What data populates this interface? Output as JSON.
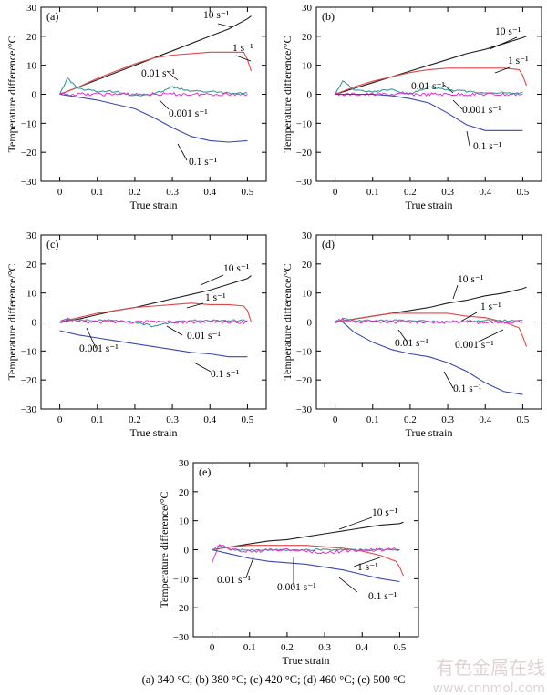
{
  "caption": "(a) 340 °C; (b) 380 °C; (c) 420 °C; (d) 460 °C; (e) 500 °C",
  "watermark": {
    "cn": "有色金属在线",
    "url": "www.cnnmol.com"
  },
  "colors": {
    "10": "#202020",
    "1": "#e04848",
    "0.01": "#3a9a9a",
    "0.001": "#e020d0",
    "0.1": "#3848b0",
    "axis": "#000000",
    "wm": "#d8c8c8"
  },
  "chart_data": [
    {
      "panel": "(a)",
      "type": "line",
      "xlabel": "True strain",
      "ylabel": "Temperature difference/°C",
      "xlim": [
        -0.05,
        0.55
      ],
      "ylim": [
        -30,
        30
      ],
      "xticks": [
        "0",
        "0.1",
        "0.2",
        "0.3",
        "0.4",
        "0.5"
      ],
      "yticks": [
        "30",
        "20",
        "10",
        "0",
        "−10",
        "−20",
        "−30"
      ],
      "series": [
        {
          "name": "10 s⁻¹",
          "key": "10",
          "x": [
            0,
            0.05,
            0.1,
            0.15,
            0.2,
            0.25,
            0.3,
            0.35,
            0.4,
            0.45,
            0.5,
            0.51
          ],
          "y": [
            0,
            2.5,
            5,
            7.5,
            10,
            12.5,
            15,
            17.5,
            20,
            22.5,
            26,
            27
          ]
        },
        {
          "name": "1 s⁻¹",
          "key": "1",
          "x": [
            0,
            0.05,
            0.1,
            0.15,
            0.2,
            0.25,
            0.3,
            0.35,
            0.4,
            0.45,
            0.49,
            0.5,
            0.51
          ],
          "y": [
            0,
            2.5,
            5.5,
            8,
            10.5,
            12.5,
            13.5,
            14,
            14.5,
            14.5,
            14.5,
            12,
            8
          ]
        },
        {
          "name": "0.01 s⁻¹",
          "key": "0.01",
          "x": [
            0,
            0.02,
            0.05,
            0.1,
            0.15,
            0.2,
            0.25,
            0.3,
            0.35,
            0.4,
            0.45,
            0.5
          ],
          "y": [
            0,
            5.5,
            2,
            1,
            1,
            -0.5,
            0,
            2.5,
            1,
            1,
            0.5,
            0.5
          ]
        },
        {
          "name": "0.001 s⁻¹",
          "key": "0.001",
          "x": [
            0,
            0.05,
            0.1,
            0.2,
            0.3,
            0.4,
            0.5
          ],
          "y": [
            0,
            0,
            0,
            0,
            0,
            0,
            0
          ]
        },
        {
          "name": "0.1 s⁻¹",
          "key": "0.1",
          "x": [
            0,
            0.05,
            0.1,
            0.15,
            0.2,
            0.25,
            0.3,
            0.35,
            0.4,
            0.45,
            0.5
          ],
          "y": [
            0,
            -1,
            -2,
            -3.5,
            -5,
            -8,
            -11.5,
            -14.5,
            -16,
            -16.5,
            -16
          ]
        }
      ],
      "annotations": [
        "(a)",
        "10 s⁻¹",
        "1 s⁻¹",
        "0.01 s⁻¹",
        "0.001 s⁻¹",
        "0.1 s⁻¹"
      ]
    },
    {
      "panel": "(b)",
      "type": "line",
      "xlabel": "True strain",
      "ylabel": "Temperature difference/°C",
      "xlim": [
        -0.05,
        0.55
      ],
      "ylim": [
        -30,
        30
      ],
      "xticks": [
        "0",
        "0.1",
        "0.2",
        "0.3",
        "0.4",
        "0.5"
      ],
      "yticks": [
        "30",
        "20",
        "10",
        "0",
        "−10",
        "−20",
        "−30"
      ],
      "series": [
        {
          "name": "10 s⁻¹",
          "key": "10",
          "x": [
            0,
            0.05,
            0.1,
            0.15,
            0.2,
            0.25,
            0.3,
            0.35,
            0.4,
            0.45,
            0.5,
            0.51
          ],
          "y": [
            0,
            2,
            4,
            6,
            8,
            10,
            12,
            14,
            15.5,
            17.5,
            19.5,
            20
          ]
        },
        {
          "name": "1 s⁻¹",
          "key": "1",
          "x": [
            0,
            0.05,
            0.1,
            0.15,
            0.2,
            0.25,
            0.3,
            0.35,
            0.4,
            0.45,
            0.49,
            0.5,
            0.51
          ],
          "y": [
            0,
            2.5,
            4.5,
            6,
            7.5,
            8.5,
            9,
            9,
            9,
            9,
            8.5,
            6.5,
            3
          ]
        },
        {
          "name": "0.01 s⁻¹",
          "key": "0.01",
          "x": [
            0,
            0.02,
            0.05,
            0.1,
            0.15,
            0.2,
            0.25,
            0.3,
            0.35,
            0.4,
            0.45,
            0.5
          ],
          "y": [
            0,
            4.5,
            1.5,
            1,
            1.5,
            0,
            2.5,
            1.5,
            1,
            0.5,
            0.5,
            0.5
          ]
        },
        {
          "name": "0.001 s⁻¹",
          "key": "0.001",
          "x": [
            0,
            0.05,
            0.1,
            0.2,
            0.3,
            0.4,
            0.5
          ],
          "y": [
            0,
            0,
            0,
            0,
            0,
            0,
            0
          ]
        },
        {
          "name": "0.1 s⁻¹",
          "key": "0.1",
          "x": [
            0,
            0.05,
            0.1,
            0.15,
            0.2,
            0.25,
            0.3,
            0.35,
            0.4,
            0.45,
            0.5
          ],
          "y": [
            0,
            0,
            0,
            -0.5,
            -1.5,
            -3,
            -6.5,
            -10.5,
            -12.5,
            -12.5,
            -12.5
          ]
        }
      ],
      "annotations": [
        "(b)",
        "10 s⁻¹",
        "1 s⁻¹",
        "0.01 s⁻¹",
        "0.001 s⁻¹",
        "0.1 s⁻¹"
      ]
    },
    {
      "panel": "(c)",
      "type": "line",
      "xlabel": "True strain",
      "ylabel": "Temperature difference/°C",
      "xlim": [
        -0.05,
        0.55
      ],
      "ylim": [
        -30,
        30
      ],
      "xticks": [
        "0",
        "0.1",
        "0.2",
        "0.3",
        "0.4",
        "0.5"
      ],
      "yticks": [
        "30",
        "20",
        "10",
        "0",
        "−10",
        "−20",
        "−30"
      ],
      "series": [
        {
          "name": "10 s⁻¹",
          "key": "10",
          "x": [
            0,
            0.05,
            0.1,
            0.15,
            0.2,
            0.25,
            0.3,
            0.35,
            0.4,
            0.45,
            0.5,
            0.51
          ],
          "y": [
            0,
            1,
            2.5,
            4,
            5,
            6.5,
            8,
            9.5,
            11,
            13,
            15,
            16
          ]
        },
        {
          "name": "1 s⁻¹",
          "key": "1",
          "x": [
            0,
            0.05,
            0.1,
            0.15,
            0.2,
            0.25,
            0.3,
            0.35,
            0.4,
            0.45,
            0.49,
            0.5,
            0.51
          ],
          "y": [
            0,
            1.5,
            3,
            4,
            5,
            5.5,
            6,
            6.5,
            6,
            6,
            5.5,
            4,
            0
          ]
        },
        {
          "name": "0.01 s⁻¹",
          "key": "0.01",
          "x": [
            0,
            0.02,
            0.05,
            0.1,
            0.15,
            0.2,
            0.25,
            0.3,
            0.35,
            0.4,
            0.45,
            0.5
          ],
          "y": [
            0,
            1,
            0.5,
            0.5,
            0.5,
            0,
            -1.5,
            0,
            0.5,
            0.5,
            0.5,
            0.5
          ]
        },
        {
          "name": "0.001 s⁻¹",
          "key": "0.001",
          "x": [
            0,
            0.02,
            0.05,
            0.1,
            0.2,
            0.3,
            0.4,
            0.5
          ],
          "y": [
            0,
            1,
            0,
            0,
            0,
            0,
            0,
            0
          ]
        },
        {
          "name": "0.1 s⁻¹",
          "key": "0.1",
          "x": [
            0,
            0.05,
            0.1,
            0.15,
            0.2,
            0.25,
            0.3,
            0.35,
            0.4,
            0.45,
            0.5
          ],
          "y": [
            -3,
            -4.5,
            -5.5,
            -6.5,
            -7.5,
            -8.5,
            -9.5,
            -10.5,
            -11,
            -12,
            -12
          ]
        }
      ],
      "annotations": [
        "(c)",
        "10 s⁻¹",
        "1 s⁻¹",
        "0.01 s⁻¹",
        "0.001 s⁻¹",
        "0.1 s⁻¹"
      ]
    },
    {
      "panel": "(d)",
      "type": "line",
      "xlabel": "True strain",
      "ylabel": "Temperature difference/°C",
      "xlim": [
        -0.05,
        0.55
      ],
      "ylim": [
        -30,
        30
      ],
      "xticks": [
        "0",
        "0.1",
        "0.2",
        "0.3",
        "0.4",
        "0.5"
      ],
      "yticks": [
        "30",
        "20",
        "10",
        "0",
        "−10",
        "−20",
        "−30"
      ],
      "series": [
        {
          "name": "10 s⁻¹",
          "key": "10",
          "x": [
            0,
            0.05,
            0.1,
            0.15,
            0.2,
            0.25,
            0.3,
            0.35,
            0.4,
            0.45,
            0.5,
            0.51
          ],
          "y": [
            0,
            1,
            2,
            3,
            4,
            5,
            6.5,
            7.5,
            9,
            10,
            11.5,
            12
          ]
        },
        {
          "name": "1 s⁻¹",
          "key": "1",
          "x": [
            0,
            0.05,
            0.1,
            0.15,
            0.2,
            0.25,
            0.3,
            0.35,
            0.4,
            0.45,
            0.49,
            0.5,
            0.51
          ],
          "y": [
            0,
            1,
            2,
            3,
            3,
            3,
            3,
            2,
            1.5,
            0,
            -2,
            -5,
            -8.5
          ]
        },
        {
          "name": "0.01 s⁻¹",
          "key": "0.01",
          "x": [
            0,
            0.02,
            0.05,
            0.1,
            0.2,
            0.3,
            0.4,
            0.5
          ],
          "y": [
            0,
            1,
            0.5,
            0.5,
            0.5,
            0,
            0.5,
            0.5
          ]
        },
        {
          "name": "0.001 s⁻¹",
          "key": "0.001",
          "x": [
            0,
            0.02,
            0.05,
            0.1,
            0.2,
            0.3,
            0.4,
            0.5
          ],
          "y": [
            0,
            1,
            0,
            0,
            0,
            0,
            0,
            0
          ]
        },
        {
          "name": "0.1 s⁻¹",
          "key": "0.1",
          "x": [
            0,
            0.02,
            0.05,
            0.1,
            0.15,
            0.2,
            0.25,
            0.3,
            0.35,
            0.4,
            0.45,
            0.5
          ],
          "y": [
            0,
            0,
            -3.5,
            -7,
            -9.5,
            -11,
            -12,
            -14,
            -17,
            -21,
            -24,
            -25
          ]
        }
      ],
      "annotations": [
        "(d)",
        "10 s⁻¹",
        "1 s⁻¹",
        "0.01 s⁻¹",
        "0.001 s⁻¹",
        "0.1 s⁻¹"
      ]
    },
    {
      "panel": "(e)",
      "type": "line",
      "xlabel": "True strain",
      "ylabel": "Temperature difference/°C",
      "xlim": [
        -0.05,
        0.55
      ],
      "ylim": [
        -30,
        30
      ],
      "xticks": [
        "0",
        "0.1",
        "0.2",
        "0.3",
        "0.4",
        "0.5"
      ],
      "yticks": [
        "30",
        "20",
        "10",
        "0",
        "−10",
        "−20",
        "−30"
      ],
      "series": [
        {
          "name": "10 s⁻¹",
          "key": "10",
          "x": [
            0,
            0.05,
            0.1,
            0.15,
            0.2,
            0.25,
            0.3,
            0.35,
            0.4,
            0.45,
            0.5,
            0.51
          ],
          "y": [
            0,
            1,
            2,
            3,
            3.5,
            4.5,
            5.5,
            6.5,
            7.5,
            8.5,
            9,
            9.5
          ]
        },
        {
          "name": "1 s⁻¹",
          "key": "1",
          "x": [
            0,
            0.05,
            0.1,
            0.15,
            0.2,
            0.25,
            0.3,
            0.35,
            0.4,
            0.45,
            0.49,
            0.5,
            0.51
          ],
          "y": [
            0,
            1,
            1.5,
            1.5,
            1.5,
            1.5,
            1,
            0.5,
            -0.5,
            -2,
            -4,
            -6,
            -9
          ]
        },
        {
          "name": "0.01 s⁻¹",
          "key": "0.01",
          "x": [
            0,
            0.02,
            0.05,
            0.1,
            0.2,
            0.3,
            0.4,
            0.5
          ],
          "y": [
            0,
            1.5,
            0,
            0,
            0,
            0,
            0,
            0
          ]
        },
        {
          "name": "0.001 s⁻¹",
          "key": "0.001",
          "x": [
            0,
            0.02,
            0.05,
            0.1,
            0.2,
            0.3,
            0.4,
            0.5
          ],
          "y": [
            -4,
            2,
            0,
            -0.5,
            0,
            -1,
            0,
            0
          ]
        },
        {
          "name": "0.1 s⁻¹",
          "key": "0.1",
          "x": [
            0,
            0.05,
            0.1,
            0.15,
            0.2,
            0.25,
            0.3,
            0.35,
            0.4,
            0.45,
            0.5
          ],
          "y": [
            0,
            -1.5,
            -3,
            -4,
            -4.5,
            -5,
            -6,
            -7,
            -8.5,
            -10,
            -11
          ]
        }
      ],
      "annotations": [
        "(e)",
        "10 s⁻¹",
        "1 s⁻¹",
        "0.01 s⁻¹",
        "0.001 s⁻¹",
        "0.1 s⁻¹"
      ]
    }
  ]
}
